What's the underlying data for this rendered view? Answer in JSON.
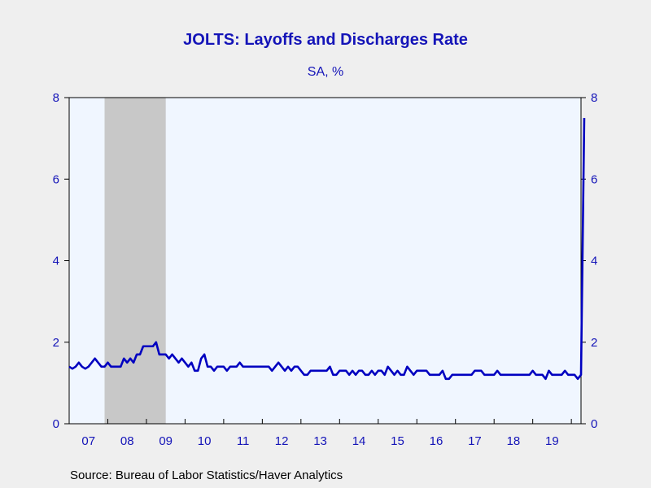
{
  "chart_data": {
    "type": "line",
    "title": "JOLTS: Layoffs and Discharges Rate",
    "subtitle": "SA, %",
    "source": "Source:  Bureau of Labor Statistics/Haver Analytics",
    "ylim": [
      0,
      8
    ],
    "y_ticks": [
      0,
      2,
      4,
      6,
      8
    ],
    "x_range": [
      "2007-01",
      "2020-04"
    ],
    "x_tick_labels": [
      "07",
      "08",
      "09",
      "10",
      "11",
      "12",
      "13",
      "14",
      "15",
      "16",
      "17",
      "18",
      "19"
    ],
    "grid": false,
    "dual_y_axis": true,
    "recession_shading": {
      "start": "2007-12",
      "end": "2009-06"
    },
    "colors": {
      "line": "#0000c0",
      "text": "#1414b8",
      "plot_bg": "#f0f6ff",
      "page_bg": "#efefef",
      "recession": "#c8c8c8"
    },
    "series": [
      {
        "start": "2007-01",
        "frequency": "monthly",
        "values": [
          1.4,
          1.35,
          1.4,
          1.5,
          1.4,
          1.35,
          1.4,
          1.5,
          1.6,
          1.5,
          1.4,
          1.4,
          1.5,
          1.4,
          1.4,
          1.4,
          1.4,
          1.6,
          1.5,
          1.6,
          1.5,
          1.7,
          1.7,
          1.9,
          1.9,
          1.9,
          1.9,
          2.0,
          1.7,
          1.7,
          1.7,
          1.6,
          1.7,
          1.6,
          1.5,
          1.6,
          1.5,
          1.4,
          1.5,
          1.3,
          1.3,
          1.6,
          1.7,
          1.4,
          1.4,
          1.3,
          1.4,
          1.4,
          1.4,
          1.3,
          1.4,
          1.4,
          1.4,
          1.5,
          1.4,
          1.4,
          1.4,
          1.4,
          1.4,
          1.4,
          1.4,
          1.4,
          1.4,
          1.3,
          1.4,
          1.5,
          1.4,
          1.3,
          1.4,
          1.3,
          1.4,
          1.4,
          1.3,
          1.2,
          1.2,
          1.3,
          1.3,
          1.3,
          1.3,
          1.3,
          1.3,
          1.4,
          1.2,
          1.2,
          1.3,
          1.3,
          1.3,
          1.2,
          1.3,
          1.2,
          1.3,
          1.3,
          1.2,
          1.2,
          1.3,
          1.2,
          1.3,
          1.3,
          1.2,
          1.4,
          1.3,
          1.2,
          1.3,
          1.2,
          1.2,
          1.4,
          1.3,
          1.2,
          1.3,
          1.3,
          1.3,
          1.3,
          1.2,
          1.2,
          1.2,
          1.2,
          1.3,
          1.1,
          1.1,
          1.2,
          1.2,
          1.2,
          1.2,
          1.2,
          1.2,
          1.2,
          1.3,
          1.3,
          1.3,
          1.2,
          1.2,
          1.2,
          1.2,
          1.3,
          1.2,
          1.2,
          1.2,
          1.2,
          1.2,
          1.2,
          1.2,
          1.2,
          1.2,
          1.2,
          1.3,
          1.2,
          1.2,
          1.2,
          1.1,
          1.3,
          1.2,
          1.2,
          1.2,
          1.2,
          1.3,
          1.2,
          1.2,
          1.2,
          1.1,
          1.2,
          7.5
        ]
      }
    ]
  }
}
